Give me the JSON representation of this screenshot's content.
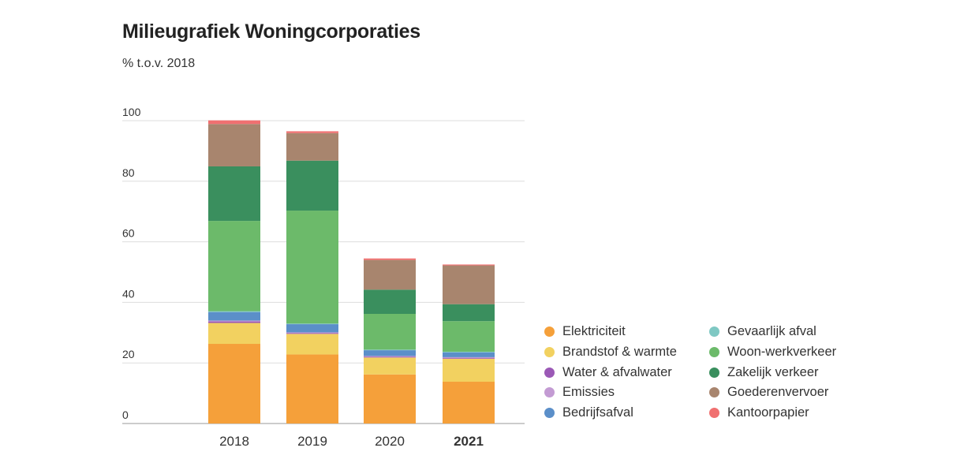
{
  "title": "Milieugrafiek Woningcorporaties",
  "subtitle": "% t.o.v. 2018",
  "chart_data": {
    "type": "bar",
    "stacked": true,
    "categories": [
      "2018",
      "2019",
      "2020",
      "2021"
    ],
    "highlight_category": "2021",
    "ylim": [
      0,
      100
    ],
    "yticks": [
      0,
      20,
      40,
      60,
      80,
      100
    ],
    "grid": true,
    "legend_position": "right",
    "series": [
      {
        "name": "Elektriciteit",
        "color": "#f5a03a",
        "values": [
          26.3,
          22.8,
          16.2,
          13.8
        ]
      },
      {
        "name": "Brandstof & warmte",
        "color": "#f2d160",
        "values": [
          6.9,
          6.8,
          5.6,
          7.6
        ]
      },
      {
        "name": "Water & afvalwater",
        "color": "#9b59b6",
        "values": [
          0.5,
          0.3,
          0.3,
          0.3
        ]
      },
      {
        "name": "Emissies",
        "color": "#c39bd3",
        "values": [
          0.3,
          0.2,
          0.2,
          0.2
        ]
      },
      {
        "name": "Bedrijfsafval",
        "color": "#5b8fc9",
        "values": [
          2.8,
          2.7,
          1.9,
          1.6
        ]
      },
      {
        "name": "Gevaarlijk afval",
        "color": "#7fc8c3",
        "values": [
          0.3,
          0.2,
          0.2,
          0.2
        ]
      },
      {
        "name": "Woon-werkverkeer",
        "color": "#6cba6a",
        "values": [
          29.8,
          37.3,
          11.8,
          10.1
        ]
      },
      {
        "name": "Zakelijk verkeer",
        "color": "#3a8f5e",
        "values": [
          18.0,
          16.5,
          8.0,
          5.6
        ]
      },
      {
        "name": "Goederenvervoer",
        "color": "#a8856e",
        "values": [
          14.0,
          9.1,
          9.8,
          12.8
        ]
      },
      {
        "name": "Kantoorpapier",
        "color": "#f07070",
        "values": [
          1.2,
          0.6,
          0.5,
          0.3
        ]
      }
    ]
  }
}
